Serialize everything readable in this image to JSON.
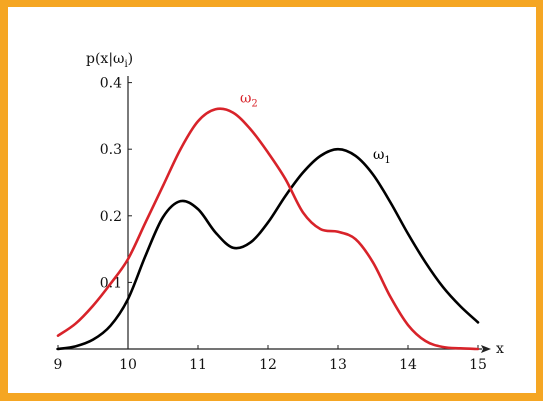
{
  "colors": {
    "frame": "#f5a623",
    "background": "#ffffff",
    "axis": "#222222",
    "omega1": "#000000",
    "omega2": "#d8232a"
  },
  "chart_data": {
    "type": "line",
    "title": "",
    "xlabel": "x",
    "ylabel": "p(x|ω",
    "ylabel_sub": "i",
    "ylabel_close": ")",
    "xlim": [
      9,
      15.2
    ],
    "ylim": [
      0,
      0.41
    ],
    "xticks": [
      9,
      10,
      11,
      12,
      13,
      14,
      15
    ],
    "yticks": [
      0.1,
      0.2,
      0.3,
      0.4
    ],
    "xtick_labels": [
      "9",
      "10",
      "11",
      "12",
      "13",
      "14",
      "15"
    ],
    "ytick_labels": [
      "0.1",
      "0.2",
      "0.3",
      "0.4"
    ],
    "y_axis_at_x": 10,
    "grid": false,
    "legend": "none",
    "series": [
      {
        "name": "ω",
        "name_sub": "1",
        "color": "#000000",
        "x": [
          9.0,
          9.25,
          9.5,
          9.75,
          10.0,
          10.25,
          10.5,
          10.75,
          11.0,
          11.25,
          11.5,
          11.75,
          12.0,
          12.25,
          12.5,
          12.75,
          13.0,
          13.25,
          13.5,
          13.75,
          14.0,
          14.25,
          14.5,
          14.75,
          15.0
        ],
        "y": [
          0.0,
          0.004,
          0.014,
          0.035,
          0.075,
          0.14,
          0.198,
          0.222,
          0.21,
          0.175,
          0.152,
          0.16,
          0.19,
          0.23,
          0.265,
          0.29,
          0.3,
          0.29,
          0.262,
          0.22,
          0.173,
          0.13,
          0.093,
          0.064,
          0.04
        ]
      },
      {
        "name": "ω",
        "name_sub": "2",
        "color": "#d8232a",
        "x": [
          9.0,
          9.25,
          9.5,
          9.75,
          10.0,
          10.25,
          10.5,
          10.75,
          11.0,
          11.25,
          11.5,
          11.75,
          12.0,
          12.25,
          12.5,
          12.75,
          13.0,
          13.25,
          13.5,
          13.75,
          14.0,
          14.25,
          14.5,
          14.75,
          15.0
        ],
        "y": [
          0.02,
          0.038,
          0.065,
          0.098,
          0.135,
          0.19,
          0.245,
          0.3,
          0.342,
          0.36,
          0.355,
          0.33,
          0.295,
          0.255,
          0.205,
          0.18,
          0.176,
          0.165,
          0.13,
          0.078,
          0.036,
          0.012,
          0.003,
          0.001,
          0.0
        ]
      }
    ],
    "series_label_positions": [
      {
        "series": 0,
        "x": 13.5,
        "y": 0.285
      },
      {
        "series": 1,
        "x": 11.6,
        "y": 0.37
      }
    ]
  }
}
